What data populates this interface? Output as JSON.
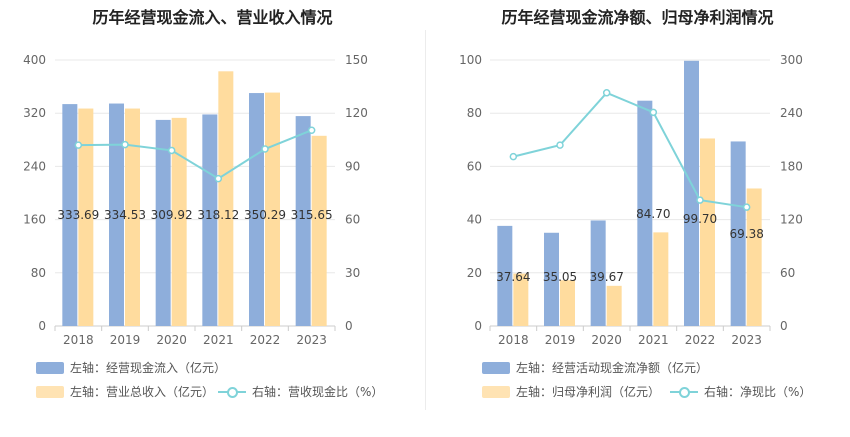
{
  "chart_data": [
    {
      "type": "bar",
      "title": "历年经营现金流入、营业收入情况",
      "categories": [
        "2018",
        "2019",
        "2020",
        "2021",
        "2022",
        "2023"
      ],
      "series": [
        {
          "name": "左轴：经营现金流入（亿元）",
          "axis": "left",
          "type": "bar",
          "color": "#8eaedb",
          "values": [
            333.69,
            334.53,
            309.92,
            318.12,
            350.29,
            315.65
          ],
          "labels": [
            "333.69",
            "334.53",
            "309.92",
            "318.12",
            "350.29",
            "315.65"
          ]
        },
        {
          "name": "左轴：营业总收入（亿元）",
          "axis": "left",
          "type": "bar",
          "color": "#ffdc9e",
          "values": [
            327.0,
            327.0,
            313.0,
            383.0,
            351.0,
            286.0
          ]
        },
        {
          "name": "右轴：营收现金比（%）",
          "axis": "right",
          "type": "line",
          "color": "#7fd3d9",
          "values": [
            102.0,
            102.3,
            99.0,
            83.1,
            99.8,
            110.4
          ]
        }
      ],
      "ylim_left": [
        0,
        400
      ],
      "yticks_left": [
        "0",
        "80",
        "160",
        "240",
        "320",
        "400"
      ],
      "ylim_right": [
        0,
        150
      ],
      "yticks_right": [
        "0",
        "30",
        "60",
        "90",
        "120",
        "150"
      ],
      "grid": true,
      "legend_position": "bottom-left"
    },
    {
      "type": "bar",
      "title": "历年经营现金流净额、归母净利润情况",
      "categories": [
        "2018",
        "2019",
        "2020",
        "2021",
        "2022",
        "2023"
      ],
      "series": [
        {
          "name": "左轴：经营活动现金流净额（亿元）",
          "axis": "left",
          "type": "bar",
          "color": "#8eaedb",
          "values": [
            37.64,
            35.05,
            39.67,
            84.7,
            99.7,
            69.38
          ],
          "labels": [
            "37.64",
            "35.05",
            "39.67",
            "84.70",
            "99.70",
            "69.38"
          ]
        },
        {
          "name": "左轴：归母净利润（亿元）",
          "axis": "left",
          "type": "bar",
          "color": "#ffdc9e",
          "values": [
            19.7,
            17.2,
            15.1,
            35.2,
            70.5,
            51.7
          ]
        },
        {
          "name": "右轴：净现比（%）",
          "axis": "right",
          "type": "line",
          "color": "#7fd3d9",
          "values": [
            191.0,
            204.0,
            263.0,
            241.0,
            142.0,
            134.0
          ]
        }
      ],
      "ylim_left": [
        0,
        100
      ],
      "yticks_left": [
        "0",
        "20",
        "40",
        "60",
        "80",
        "100"
      ],
      "ylim_right": [
        0,
        300
      ],
      "yticks_right": [
        "0",
        "60",
        "120",
        "180",
        "240",
        "300"
      ],
      "grid": true,
      "legend_position": "bottom-left"
    }
  ]
}
